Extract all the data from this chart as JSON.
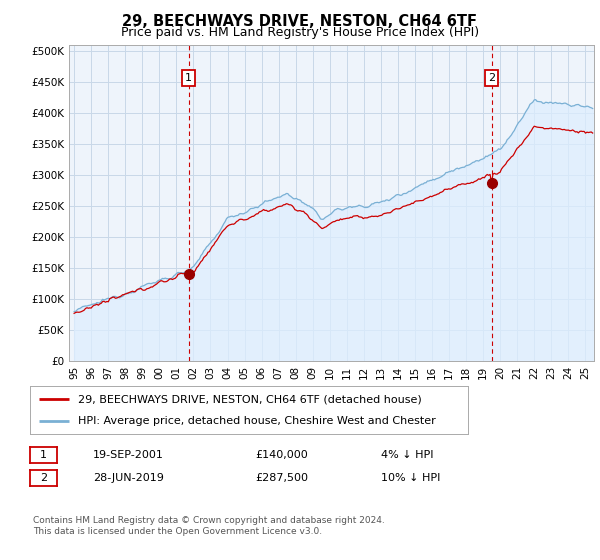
{
  "title": "29, BEECHWAYS DRIVE, NESTON, CH64 6TF",
  "subtitle": "Price paid vs. HM Land Registry's House Price Index (HPI)",
  "ylabel_ticks": [
    "£0",
    "£50K",
    "£100K",
    "£150K",
    "£200K",
    "£250K",
    "£300K",
    "£350K",
    "£400K",
    "£450K",
    "£500K"
  ],
  "ytick_values": [
    0,
    50000,
    100000,
    150000,
    200000,
    250000,
    300000,
    350000,
    400000,
    450000,
    500000
  ],
  "ylim": [
    0,
    510000
  ],
  "xlim_start": 1994.7,
  "xlim_end": 2025.5,
  "line1_color": "#cc0000",
  "line2_color": "#7ab0d4",
  "fill_color": "#ddeeff",
  "marker_color": "#990000",
  "sale1_x": 2001.72,
  "sale1_y": 140000,
  "sale2_x": 2019.49,
  "sale2_y": 287500,
  "vline1_x": 2001.72,
  "vline2_x": 2019.49,
  "vline_color": "#cc0000",
  "vline_style": "--",
  "legend_label1": "29, BEECHWAYS DRIVE, NESTON, CH64 6TF (detached house)",
  "legend_label2": "HPI: Average price, detached house, Cheshire West and Chester",
  "annotation1_label": "1",
  "annotation2_label": "2",
  "table_row1": [
    "1",
    "19-SEP-2001",
    "£140,000",
    "4% ↓ HPI"
  ],
  "table_row2": [
    "2",
    "28-JUN-2019",
    "£287,500",
    "10% ↓ HPI"
  ],
  "footer": "Contains HM Land Registry data © Crown copyright and database right 2024.\nThis data is licensed under the Open Government Licence v3.0.",
  "bg_color": "#ffffff",
  "plot_bg_color": "#eef4fb",
  "grid_color": "#c8d8e8",
  "title_fontsize": 10.5,
  "subtitle_fontsize": 9,
  "tick_fontsize": 7.5,
  "legend_fontsize": 8,
  "table_fontsize": 8,
  "footer_fontsize": 6.5
}
